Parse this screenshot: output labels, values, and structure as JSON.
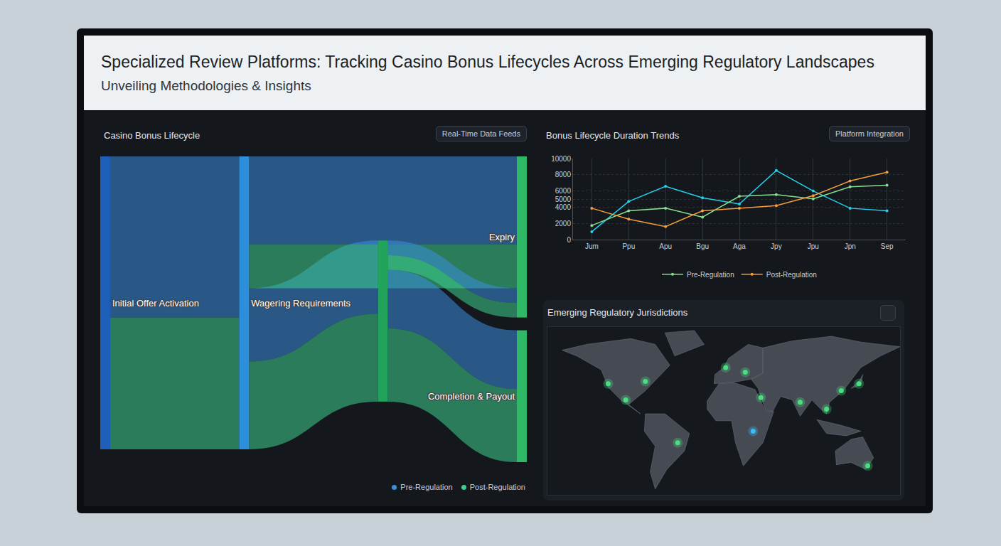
{
  "header": {
    "title": "Specialized Review Platforms: Tracking Casino Bonus Lifecycles Across Emerging Regulatory Landscapes",
    "subtitle": "Unveiling Methodologies & Insights"
  },
  "chart_data": [
    {
      "type": "sankey",
      "title": "Casino Bonus Lifecycle",
      "annotations": [
        "Real-Time Data Feeds"
      ],
      "nodes": [
        {
          "label": "Initial Offer Activation",
          "color": "#1d5fb8"
        },
        {
          "label": "Wagering Requirements",
          "color": "#2b8fdc"
        },
        {
          "label": null,
          "color": "#21a35c"
        },
        {
          "label": "Completion & Payout",
          "color": "#2fb866"
        },
        {
          "label": "Expiry",
          "color": "#2fb866"
        }
      ],
      "series": [
        {
          "name": "Pre-Regulation",
          "color": "#3b8ee0"
        },
        {
          "name": "Post-Regulation",
          "color": "#3ccf8e"
        }
      ],
      "links": [
        {
          "source": 0,
          "target": 1,
          "value": 55,
          "series": "Pre-Regulation"
        },
        {
          "source": 0,
          "target": 1,
          "value": 45,
          "series": "Post-Regulation"
        },
        {
          "source": 1,
          "target": 2,
          "value": 25,
          "series": "Pre-Regulation"
        },
        {
          "source": 1,
          "target": 2,
          "value": 30,
          "series": "Post-Regulation"
        },
        {
          "source": 1,
          "target": 4,
          "value": 30,
          "series": "Pre-Regulation"
        },
        {
          "source": 1,
          "target": 4,
          "value": 15,
          "series": "Post-Regulation"
        },
        {
          "source": 2,
          "target": 3,
          "value": 20,
          "series": "Pre-Regulation"
        },
        {
          "source": 2,
          "target": 3,
          "value": 25,
          "series": "Post-Regulation"
        },
        {
          "source": 2,
          "target": 4,
          "value": 5,
          "series": "Pre-Regulation"
        },
        {
          "source": 2,
          "target": 4,
          "value": 5,
          "series": "Post-Regulation"
        }
      ],
      "legend": "bottom right"
    },
    {
      "type": "line",
      "title": "Bonus Lifecycle Duration Trends",
      "annotations": [
        "Platform Integration"
      ],
      "categories": [
        "Jum",
        "Ppu",
        "Apu",
        "Bgu",
        "Aga",
        "Jpy",
        "Jpu",
        "Jpn",
        "Sep"
      ],
      "series": [
        {
          "color": "#22d3ee",
          "values": [
            970,
            4710,
            6580,
            5160,
            4390,
            8520,
            6000,
            3870,
            3550
          ]
        },
        {
          "name": "Pre-Regulation",
          "color": "#86e08f",
          "values": [
            1740,
            3550,
            3870,
            2770,
            5350,
            5550,
            5030,
            6520,
            6710
          ]
        },
        {
          "name": "Post-Regulation",
          "color": "#f59e3b",
          "values": [
            3870,
            2520,
            1610,
            3550,
            3870,
            4190,
            5420,
            7230,
            8320
          ]
        }
      ],
      "ylim": [
        0,
        10000
      ],
      "yticks": [
        0,
        2000,
        4000,
        5000,
        6000,
        8000,
        10000
      ],
      "grid": true,
      "legend": "bottom",
      "marker": "circle"
    },
    {
      "type": "scatter",
      "title": "Emerging Regulatory Jurisdictions",
      "x": [
        -118,
        -80,
        -100,
        -47,
        2,
        22,
        38,
        30,
        78,
        105,
        120,
        138,
        147
      ],
      "y": [
        36,
        38,
        22,
        -15,
        50,
        46,
        24,
        -5,
        20,
        14,
        30,
        36,
        -35
      ],
      "colors": [
        "#4ade80",
        "#4ade80",
        "#4ade80",
        "#4ade80",
        "#4ade80",
        "#4ade80",
        "#4ade80",
        "#38bdf8",
        "#4ade80",
        "#4ade80",
        "#4ade80",
        "#4ade80",
        "#4ade80"
      ],
      "xlim": [
        -180,
        180
      ],
      "ylim": [
        -60,
        85
      ],
      "tick_labels": false,
      "marker": "circle"
    }
  ]
}
